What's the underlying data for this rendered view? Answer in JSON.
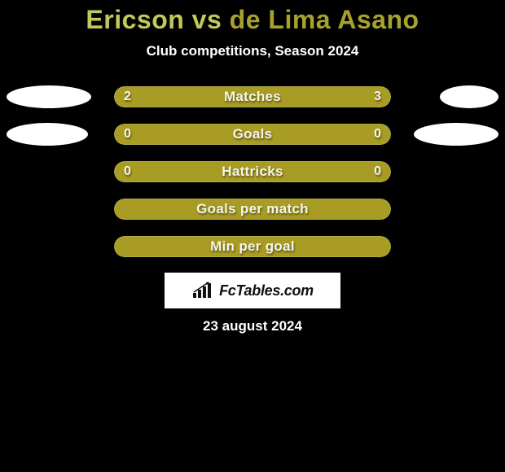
{
  "title": {
    "player1": "Ericson",
    "vs": "vs",
    "player2": "de Lima Asano",
    "player1_color": "#c2c85b",
    "player2_color": "#a7a22c"
  },
  "subtitle": "Club competitions, Season 2024",
  "bar_color": "#a89c24",
  "background_color": "#000000",
  "stats": [
    {
      "label": "Matches",
      "left_value": "2",
      "right_value": "3",
      "left_pct": 40,
      "right_pct": 60,
      "show_values": true,
      "ellipse_left_width": 104,
      "ellipse_right_width": 72
    },
    {
      "label": "Goals",
      "left_value": "0",
      "right_value": "0",
      "left_pct": 100,
      "right_pct": 0,
      "show_values": true,
      "ellipse_left_width": 100,
      "ellipse_right_width": 104
    },
    {
      "label": "Hattricks",
      "left_value": "0",
      "right_value": "0",
      "left_pct": 100,
      "right_pct": 0,
      "show_values": true,
      "ellipse_left_width": 0,
      "ellipse_right_width": 0
    },
    {
      "label": "Goals per match",
      "left_value": "",
      "right_value": "",
      "left_pct": 100,
      "right_pct": 0,
      "show_values": false,
      "ellipse_left_width": 0,
      "ellipse_right_width": 0
    },
    {
      "label": "Min per goal",
      "left_value": "",
      "right_value": "",
      "left_pct": 100,
      "right_pct": 0,
      "show_values": false,
      "ellipse_left_width": 0,
      "ellipse_right_width": 0
    }
  ],
  "logo_text": "FcTables.com",
  "date": "23 august 2024"
}
